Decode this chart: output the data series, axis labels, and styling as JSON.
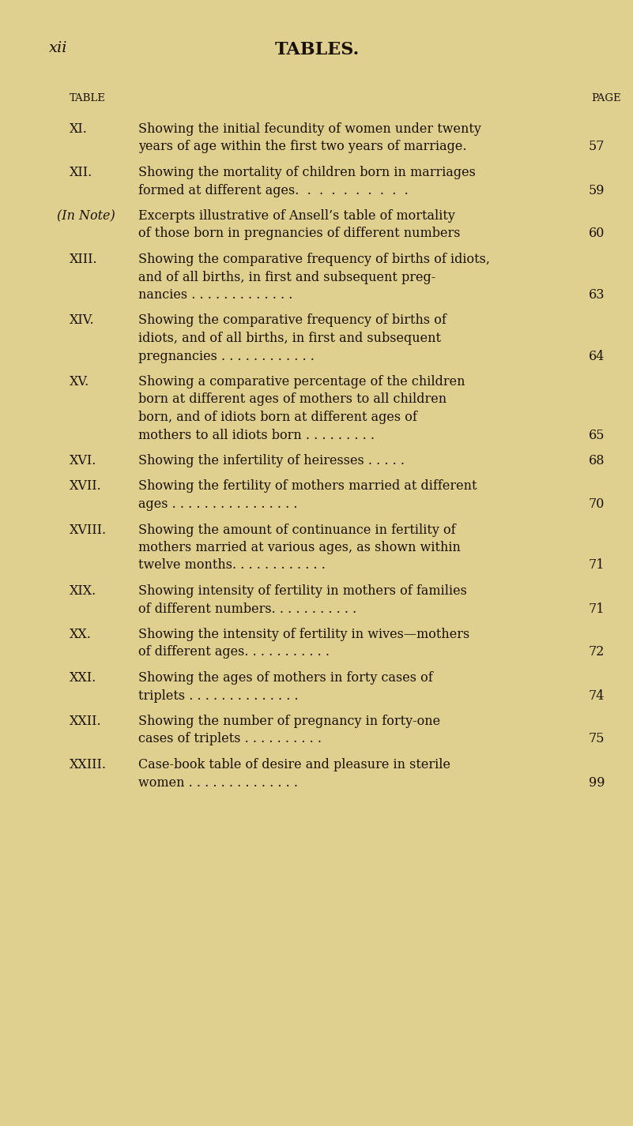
{
  "bg_color": "#dfd090",
  "text_color": "#1a1008",
  "page_header_left": "xii",
  "page_header_center": "TABLES.",
  "col_header_left": "TABLE",
  "col_header_right": "PAGE",
  "entries": [
    {
      "roman": "XI.",
      "line1": "Showing the initial fecundity of women under twenty",
      "line2": "years of age within the first two years of marriage.",
      "line3": null,
      "line4": null,
      "page": "57",
      "page_line": 2,
      "italic_roman": false,
      "note": false
    },
    {
      "roman": "XII.",
      "line1": "Showing the mortality of children born in marriages",
      "line2": "formed at different ages.  .  .  .  .  .  .  .  .  .",
      "line3": null,
      "line4": null,
      "page": "59",
      "page_line": 2,
      "italic_roman": false,
      "note": false
    },
    {
      "roman": "(In Note)",
      "line1": "Excerpts illustrative of Ansell’s table of mortality",
      "line2": "of those born in pregnancies of different numbers",
      "line3": null,
      "line4": null,
      "page": "60",
      "page_line": 2,
      "italic_roman": true,
      "note": true
    },
    {
      "roman": "XIII.",
      "line1": "Showing the comparative frequency of births of idiots,",
      "line2": "and of all births, in first and subsequent preg-",
      "line3": "nancies . . . . . . . . . . . . .",
      "line4": null,
      "page": "63",
      "page_line": 3,
      "italic_roman": false,
      "note": false
    },
    {
      "roman": "XIV.",
      "line1": "Showing the comparative frequency of births of",
      "line2": "idiots, and of all births, in first and subsequent",
      "line3": "pregnancies . . . . . . . . . . . .",
      "line4": null,
      "page": "64",
      "page_line": 3,
      "italic_roman": false,
      "note": false
    },
    {
      "roman": "XV.",
      "line1": "Showing a comparative percentage of the children",
      "line2": "born at different ages of mothers to all children",
      "line3": "born, and of idiots born at different ages of",
      "line4": "mothers to all idiots born . . . . . . . . .",
      "page": "65",
      "page_line": 4,
      "italic_roman": false,
      "note": false
    },
    {
      "roman": "XVI.",
      "line1": "Showing the infertility of heiresses . . . . .",
      "line2": null,
      "line3": null,
      "line4": null,
      "page": "68",
      "page_line": 1,
      "italic_roman": false,
      "note": false
    },
    {
      "roman": "XVII.",
      "line1": "Showing the fertility of mothers married at different",
      "line2": "ages . . . . . . . . . . . . . . . .",
      "line3": null,
      "line4": null,
      "page": "70",
      "page_line": 2,
      "italic_roman": false,
      "note": false
    },
    {
      "roman": "XVIII.",
      "line1": "Showing the amount of continuance in fertility of",
      "line2": "mothers married at various ages, as shown within",
      "line3": "twelve months. . . . . . . . . . . .",
      "line4": null,
      "page": "71",
      "page_line": 3,
      "italic_roman": false,
      "note": false
    },
    {
      "roman": "XIX.",
      "line1": "Showing intensity of fertility in mothers of families",
      "line2": "of different numbers. . . . . . . . . . .",
      "line3": null,
      "line4": null,
      "page": "71",
      "page_line": 2,
      "italic_roman": false,
      "note": false
    },
    {
      "roman": "XX.",
      "line1": "Showing the intensity of fertility in wives—mothers",
      "line2": "of different ages. . . . . . . . . . .",
      "line3": null,
      "line4": null,
      "page": "72",
      "page_line": 2,
      "italic_roman": false,
      "note": false
    },
    {
      "roman": "XXI.",
      "line1": "Showing the ages of mothers in forty cases of",
      "line2": "triplets . . . . . . . . . . . . . .",
      "line3": null,
      "line4": null,
      "page": "74",
      "page_line": 2,
      "italic_roman": false,
      "note": false
    },
    {
      "roman": "XXII.",
      "line1": "Showing the number of pregnancy in forty-one",
      "line2": "cases of triplets . . . . . . . . . .",
      "line3": null,
      "line4": null,
      "page": "75",
      "page_line": 2,
      "italic_roman": false,
      "note": false
    },
    {
      "roman": "XXIII.",
      "line1": "Case-book table of desire and pleasure in sterile",
      "line2": "women . . . . . . . . . . . . . .",
      "line3": null,
      "line4": null,
      "page": "99",
      "page_line": 2,
      "italic_roman": false,
      "note": false
    }
  ]
}
